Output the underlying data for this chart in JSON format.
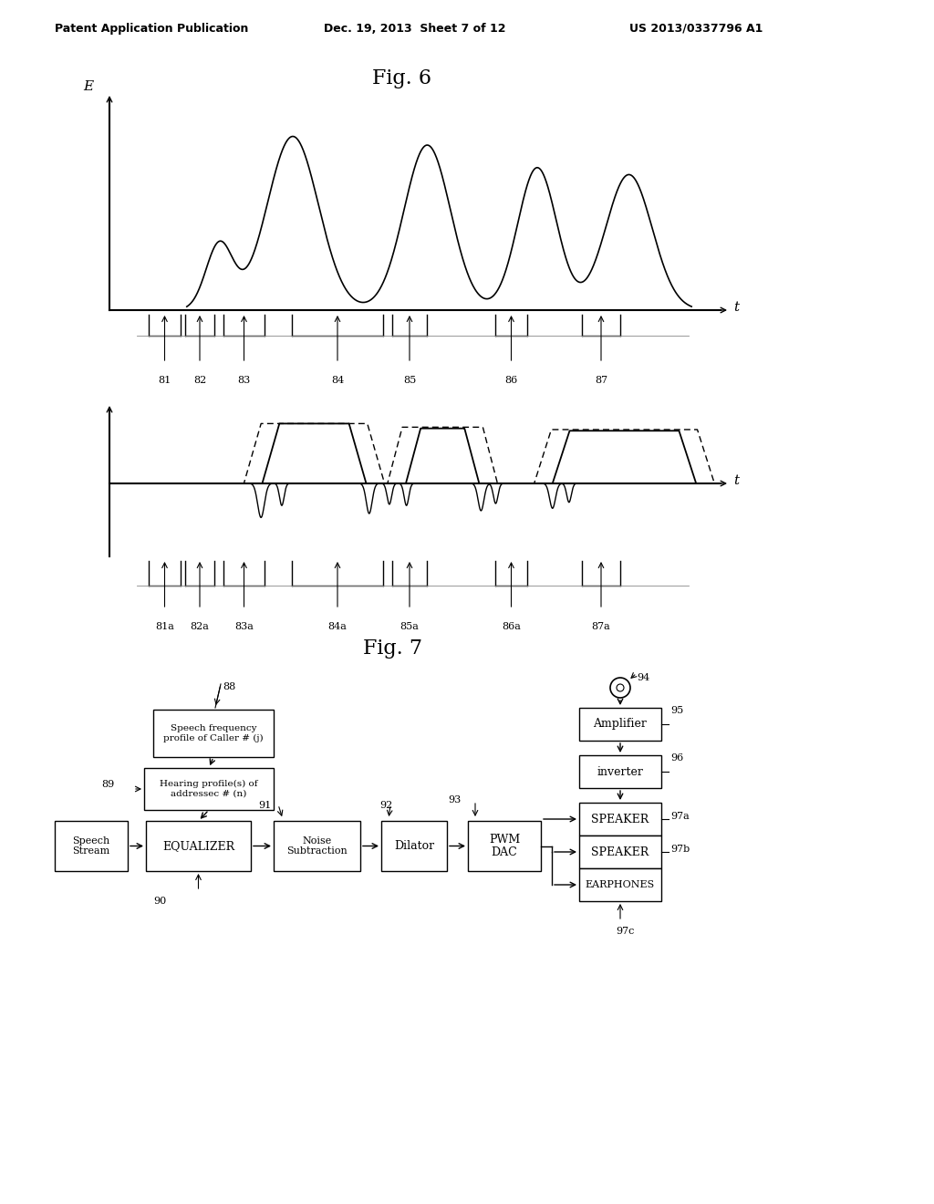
{
  "header_left": "Patent Application Publication",
  "header_mid": "Dec. 19, 2013  Sheet 7 of 12",
  "header_right": "US 2013/0337796 A1",
  "fig6_title": "Fig. 6",
  "fig7_title": "Fig. 7",
  "bg_color": "#ffffff",
  "text_color": "#000000"
}
